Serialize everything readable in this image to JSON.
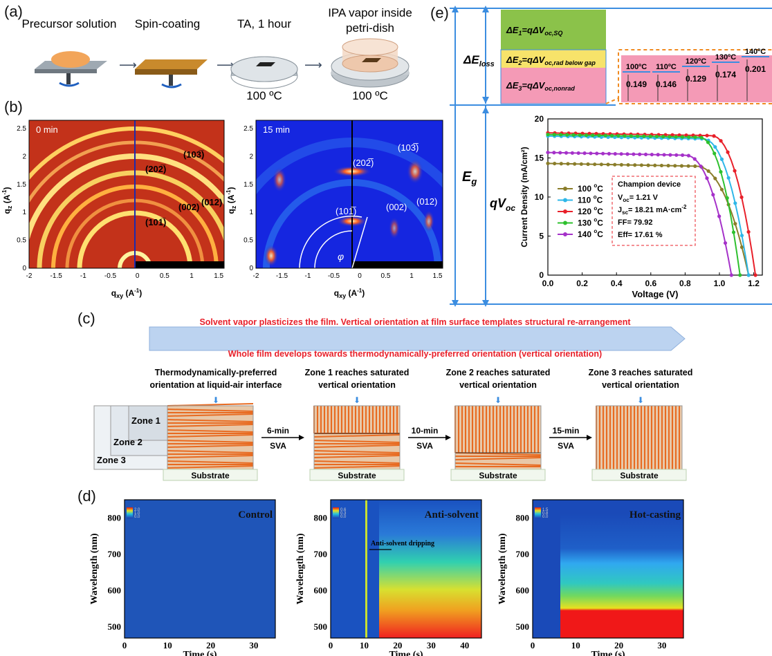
{
  "panel_a": {
    "label": "(a)",
    "steps": [
      "Precursor solution",
      "Spin-coating",
      "TA, 1 hour",
      "IPA vapor inside\npetri-dish"
    ],
    "temp_a": "100 ºC",
    "temp_b": "100 ºC"
  },
  "panel_b": {
    "label": "(b)",
    "left": {
      "time": "0 min",
      "peaks": [
        "(20̅ 2̅)",
        "(10̅3̅)",
        "(10̅1̅)",
        "(002)",
        "(012)"
      ],
      "peak_labels": [
        "(202̅)",
        "(103̅)",
        "(101̅)",
        "(002)",
        "(012)"
      ],
      "xlabel": "q",
      "xlabel_sub": "xy",
      "xlabel_unit": " (A",
      "ylabel": "q",
      "ylabel_sub": "z",
      "x_ticks": [
        "-2",
        "-1.5",
        "-1",
        "-0.5",
        "0",
        "0.5",
        "1",
        "1.5"
      ],
      "y_ticks": [
        "0",
        "0.5",
        "1",
        "1.5",
        "2",
        "2.5"
      ]
    },
    "right": {
      "time": "15 min",
      "peak_labels": [
        "(202̅)",
        "(103̅)",
        "(101̅)",
        "(002)",
        "(012)"
      ],
      "phi": "φ",
      "x_ticks": [
        "-2",
        "-1.5",
        "-1",
        "-0.5",
        "0",
        "0.5",
        "1",
        "1.5"
      ],
      "y_ticks": [
        "0",
        "0.5",
        "1",
        "1.5",
        "2",
        "2.5"
      ]
    }
  },
  "panel_c": {
    "label": "(c)",
    "arrow_text_1": "Solvent vapor plasticizes the film. Vertical orientation at film surface templates structural re-arrangement",
    "arrow_text_2": "Whole film develops towards thermodynamically-preferred orientation (vertical orientation)",
    "stage_titles": [
      "Thermodynamically-preferred\norientation at liquid-air interface",
      "Zone 1 reaches saturated\nvertical orientation",
      "Zone 2 reaches saturated\nvertical orientation",
      "Zone 3 reaches saturated\nvertical orientation"
    ],
    "zones": [
      "Zone 1",
      "Zone 2",
      "Zone 3"
    ],
    "svas": [
      "6-min\nSVA",
      "10-min\nSVA",
      "15-min\nSVA"
    ],
    "substrate": "Substrate"
  },
  "panel_d": {
    "label": "(d)",
    "plots": [
      {
        "title": "Control",
        "scale": [
          "2.0",
          "1.0",
          "0.0"
        ],
        "x_ticks": [
          "0",
          "10",
          "20",
          "30"
        ],
        "y_ticks": [
          "500",
          "600",
          "700",
          "800"
        ]
      },
      {
        "title": "Anti-solvent",
        "scale": [
          "0.6",
          "0.3",
          "0.0"
        ],
        "annotation": "Anti-solvent dripping",
        "x_ticks": [
          "0",
          "10",
          "20",
          "30",
          "40"
        ],
        "y_ticks": [
          "500",
          "600",
          "700",
          "800"
        ]
      },
      {
        "title": "Hot-casting",
        "scale": [
          "1.5",
          "0.8",
          "0.0"
        ],
        "x_ticks": [
          "0",
          "10",
          "20",
          "30"
        ],
        "y_ticks": [
          "500",
          "600",
          "700",
          "800"
        ]
      }
    ],
    "xlabel": "Time (s)",
    "ylabel": "Wavelength (nm)"
  },
  "panel_e": {
    "label": "(e)",
    "e1": "ΔE",
    "e1_rest": "=qΔV",
    "e1_sub": "oc,SQ",
    "e2_rest": "=qΔV",
    "e2_sub": "oc,rad below gap",
    "e3_rest": "=qΔV",
    "e3_sub": "oc,nonrad",
    "eloss": "ΔE",
    "eloss_sub": "loss",
    "eg": "E",
    "eg_sub": "g",
    "qvoc": "qV",
    "qvoc_sub": "oc",
    "nonrad_temps": [
      "100ºC",
      "110ºC",
      "120ºC",
      "130ºC",
      "140ºC"
    ],
    "nonrad_values": [
      "0.149",
      "0.146",
      "0.129",
      "0.174",
      "0.201"
    ]
  },
  "chart_data": {
    "type": "line",
    "xlabel": "Voltage (V)",
    "ylabel": "Current Density (mA/cm²)",
    "xlim": [
      0.0,
      1.25
    ],
    "ylim": [
      0,
      20
    ],
    "x_ticks": [
      "0.0",
      "0.2",
      "0.4",
      "0.6",
      "0.8",
      "1.0",
      "1.2"
    ],
    "y_ticks": [
      "0",
      "5",
      "10",
      "15",
      "20"
    ],
    "series": [
      {
        "name": "100 °C",
        "color": "#8a7d2a",
        "jsc": 14.3,
        "voc": 1.17,
        "knee": 0.86
      },
      {
        "name": "110 °C",
        "color": "#2fb7e8",
        "jsc": 17.8,
        "voc": 1.17,
        "knee": 0.9
      },
      {
        "name": "120 °C",
        "color": "#e8202a",
        "jsc": 18.21,
        "voc": 1.21,
        "knee": 0.95
      },
      {
        "name": "130 °C",
        "color": "#2ec02e",
        "jsc": 18.0,
        "voc": 1.12,
        "knee": 0.88
      },
      {
        "name": "140 °C",
        "color": "#a531c9",
        "jsc": 15.7,
        "voc": 1.07,
        "knee": 0.8
      }
    ],
    "legend_labels": [
      "100 ",
      "110 ",
      "120 ",
      "130 ",
      "140 "
    ],
    "champion": {
      "title": "Champion device",
      "voc": "V",
      "voc_sub": "oc",
      "voc_val": "= 1.21 V",
      "jsc": "J",
      "jsc_sub": "sc",
      "jsc_val": "= 18.21 mA·cm",
      "ff": "FF= 79.92",
      "eff": "Eff= 17.61 %"
    }
  }
}
